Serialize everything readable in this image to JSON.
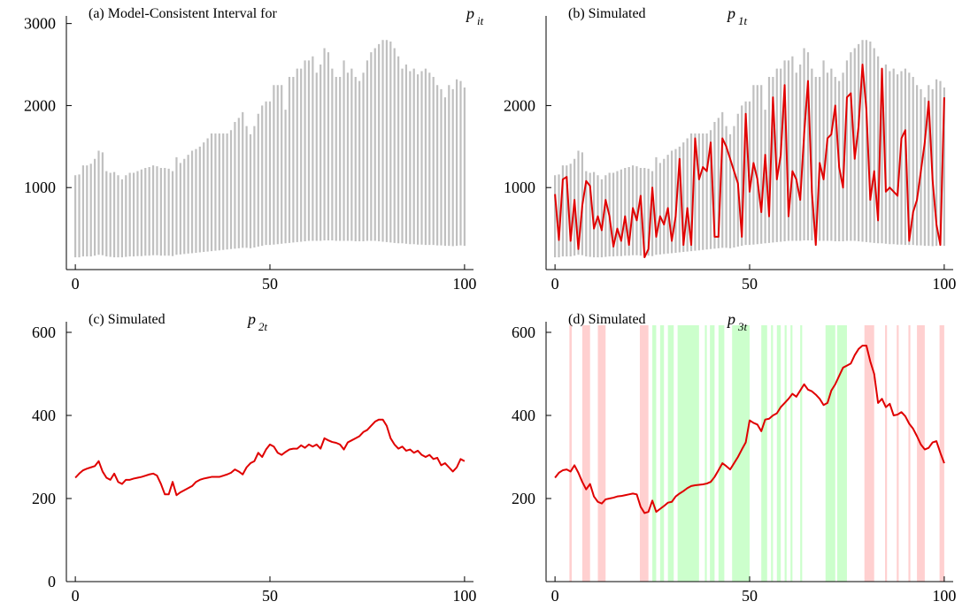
{
  "chart_data": [
    {
      "type": "range",
      "title": "(a) Model-Consistent Interval for",
      "title_symbol": "p",
      "title_subscript": "it",
      "x": [
        0,
        1,
        2,
        3,
        4,
        5,
        6,
        7,
        8,
        9,
        10,
        11,
        12,
        13,
        14,
        15,
        16,
        17,
        18,
        19,
        20,
        21,
        22,
        23,
        24,
        25,
        26,
        27,
        28,
        29,
        30,
        31,
        32,
        33,
        34,
        35,
        36,
        37,
        38,
        39,
        40,
        41,
        42,
        43,
        44,
        45,
        46,
        47,
        48,
        49,
        50,
        51,
        52,
        53,
        54,
        55,
        56,
        57,
        58,
        59,
        60,
        61,
        62,
        63,
        64,
        65,
        66,
        67,
        68,
        69,
        70,
        71,
        72,
        73,
        74,
        75,
        76,
        77,
        78,
        79,
        80,
        81,
        82,
        83,
        84,
        85,
        86,
        87,
        88,
        89,
        90,
        91,
        92,
        93,
        94,
        95,
        96,
        97,
        98,
        99,
        100
      ],
      "lower": [
        150,
        150,
        160,
        160,
        160,
        170,
        180,
        175,
        160,
        155,
        150,
        150,
        150,
        155,
        160,
        160,
        165,
        165,
        170,
        170,
        175,
        175,
        170,
        170,
        170,
        165,
        180,
        185,
        190,
        195,
        200,
        205,
        210,
        215,
        220,
        225,
        230,
        235,
        240,
        245,
        250,
        255,
        260,
        265,
        265,
        260,
        270,
        280,
        290,
        300,
        300,
        305,
        310,
        315,
        320,
        325,
        330,
        335,
        340,
        345,
        350,
        350,
        350,
        350,
        355,
        355,
        355,
        350,
        350,
        350,
        350,
        350,
        345,
        345,
        345,
        350,
        350,
        350,
        345,
        340,
        335,
        330,
        325,
        320,
        320,
        315,
        310,
        310,
        305,
        305,
        300,
        300,
        300,
        295,
        295,
        290,
        290,
        285,
        290,
        295,
        290
      ],
      "upper": [
        1150,
        1160,
        1270,
        1270,
        1290,
        1350,
        1450,
        1430,
        1200,
        1180,
        1190,
        1150,
        1100,
        1150,
        1180,
        1180,
        1200,
        1220,
        1240,
        1250,
        1270,
        1260,
        1240,
        1240,
        1230,
        1200,
        1370,
        1300,
        1350,
        1400,
        1450,
        1470,
        1500,
        1550,
        1600,
        1660,
        1660,
        1660,
        1660,
        1660,
        1700,
        1800,
        1850,
        1920,
        1750,
        1650,
        1750,
        1900,
        2000,
        2050,
        2050,
        2250,
        2250,
        2250,
        1950,
        2350,
        2350,
        2450,
        2450,
        2550,
        2550,
        2600,
        2400,
        2500,
        2700,
        2650,
        2450,
        2350,
        2350,
        2550,
        2400,
        2450,
        2350,
        2300,
        2400,
        2550,
        2650,
        2700,
        2750,
        2800,
        2800,
        2780,
        2700,
        2600,
        2450,
        2500,
        2420,
        2450,
        2380,
        2420,
        2450,
        2400,
        2350,
        2250,
        2200,
        2100,
        2250,
        2200,
        2320,
        2300,
        2220
      ],
      "range_color": "#c0c0c0",
      "xlim": [
        -2.3,
        102.3
      ],
      "ylim": [
        0,
        3050
      ],
      "xticks": [
        0,
        50,
        100
      ],
      "yticks": [
        1000,
        2000,
        3000
      ]
    },
    {
      "type": "line",
      "title": "(b) Simulated",
      "title_symbol": "p",
      "title_subscript": "1t",
      "x": [
        0,
        1,
        2,
        3,
        4,
        5,
        6,
        7,
        8,
        9,
        10,
        11,
        12,
        13,
        14,
        15,
        16,
        17,
        18,
        19,
        20,
        21,
        22,
        23,
        24,
        25,
        26,
        27,
        28,
        29,
        30,
        31,
        32,
        33,
        34,
        35,
        36,
        37,
        38,
        39,
        40,
        41,
        42,
        43,
        44,
        45,
        46,
        47,
        48,
        49,
        50,
        51,
        52,
        53,
        54,
        55,
        56,
        57,
        58,
        59,
        60,
        61,
        62,
        63,
        64,
        65,
        66,
        67,
        68,
        69,
        70,
        71,
        72,
        73,
        74,
        75,
        76,
        77,
        78,
        79,
        80,
        81,
        82,
        83,
        84,
        85,
        86,
        87,
        88,
        89,
        90,
        91,
        92,
        93,
        94,
        95,
        96,
        97,
        98,
        99,
        100
      ],
      "lower": [
        150,
        150,
        160,
        160,
        160,
        170,
        180,
        175,
        160,
        155,
        150,
        150,
        150,
        155,
        160,
        160,
        165,
        165,
        170,
        170,
        175,
        175,
        170,
        170,
        170,
        165,
        180,
        185,
        190,
        195,
        200,
        205,
        210,
        215,
        220,
        225,
        230,
        235,
        240,
        245,
        250,
        255,
        260,
        265,
        265,
        260,
        270,
        280,
        290,
        300,
        300,
        305,
        310,
        315,
        320,
        325,
        330,
        335,
        340,
        345,
        350,
        350,
        350,
        350,
        355,
        355,
        355,
        350,
        350,
        350,
        350,
        350,
        345,
        345,
        345,
        350,
        350,
        350,
        345,
        340,
        335,
        330,
        325,
        320,
        320,
        315,
        310,
        310,
        305,
        305,
        300,
        300,
        300,
        295,
        295,
        290,
        290,
        285,
        290,
        295,
        290
      ],
      "upper": [
        1150,
        1160,
        1270,
        1270,
        1290,
        1350,
        1450,
        1430,
        1200,
        1180,
        1190,
        1150,
        1100,
        1150,
        1180,
        1180,
        1200,
        1220,
        1240,
        1250,
        1270,
        1260,
        1240,
        1240,
        1230,
        1200,
        1370,
        1300,
        1350,
        1400,
        1450,
        1470,
        1500,
        1550,
        1600,
        1660,
        1660,
        1660,
        1660,
        1660,
        1700,
        1800,
        1850,
        1920,
        1750,
        1650,
        1750,
        1900,
        2000,
        2050,
        2050,
        2250,
        2250,
        2250,
        1950,
        2350,
        2350,
        2450,
        2450,
        2550,
        2550,
        2600,
        2400,
        2500,
        2700,
        2650,
        2450,
        2350,
        2350,
        2550,
        2400,
        2450,
        2350,
        2300,
        2400,
        2550,
        2650,
        2700,
        2750,
        2800,
        2800,
        2780,
        2700,
        2600,
        2450,
        2500,
        2420,
        2450,
        2380,
        2420,
        2450,
        2400,
        2350,
        2250,
        2200,
        2100,
        2250,
        2200,
        2320,
        2300,
        2220
      ],
      "range_color": "#c0c0c0",
      "series": [
        {
          "color": "#e00000",
          "values": [
            920,
            360,
            1100,
            1130,
            350,
            850,
            250,
            780,
            1080,
            1020,
            500,
            650,
            480,
            850,
            650,
            280,
            500,
            350,
            650,
            300,
            750,
            600,
            900,
            150,
            250,
            1000,
            400,
            650,
            550,
            750,
            350,
            650,
            1350,
            300,
            750,
            300,
            1600,
            1100,
            1250,
            1200,
            1550,
            400,
            400,
            1600,
            1500,
            1350,
            1200,
            1050,
            400,
            1900,
            950,
            1300,
            1100,
            700,
            1400,
            650,
            2100,
            1100,
            1400,
            2250,
            650,
            1200,
            1100,
            850,
            1650,
            2300,
            950,
            300,
            1300,
            1100,
            1600,
            1650,
            2000,
            1250,
            1000,
            2100,
            2150,
            1350,
            1750,
            2500,
            1950,
            850,
            1200,
            600,
            2450,
            950,
            1000,
            950,
            900,
            1600,
            1700,
            350,
            700,
            850,
            1200,
            1550,
            2050,
            1100,
            550,
            300,
            2100
          ]
        }
      ],
      "xlim": [
        -2.3,
        102.3
      ],
      "ylim": [
        0,
        3050
      ],
      "xticks": [
        0,
        50,
        100
      ],
      "yticks": [
        1000,
        2000
      ]
    },
    {
      "type": "line",
      "title": "(c) Simulated",
      "title_symbol": "p",
      "title_subscript": "2t",
      "x": [
        0,
        1,
        2,
        3,
        4,
        5,
        6,
        7,
        8,
        9,
        10,
        11,
        12,
        13,
        14,
        15,
        16,
        17,
        18,
        19,
        20,
        21,
        22,
        23,
        24,
        25,
        26,
        27,
        28,
        29,
        30,
        31,
        32,
        33,
        34,
        35,
        36,
        37,
        38,
        39,
        40,
        41,
        42,
        43,
        44,
        45,
        46,
        47,
        48,
        49,
        50,
        51,
        52,
        53,
        54,
        55,
        56,
        57,
        58,
        59,
        60,
        61,
        62,
        63,
        64,
        65,
        66,
        67,
        68,
        69,
        70,
        71,
        72,
        73,
        74,
        75,
        76,
        77,
        78,
        79,
        80,
        81,
        82,
        83,
        84,
        85,
        86,
        87,
        88,
        89,
        90,
        91,
        92,
        93,
        94,
        95,
        96,
        97,
        98,
        99,
        100
      ],
      "series": [
        {
          "color": "#e00000",
          "values": [
            250,
            260,
            268,
            272,
            275,
            278,
            290,
            265,
            250,
            245,
            260,
            240,
            235,
            245,
            245,
            248,
            250,
            252,
            255,
            258,
            260,
            255,
            235,
            210,
            210,
            240,
            208,
            215,
            220,
            225,
            230,
            240,
            245,
            248,
            250,
            252,
            252,
            252,
            255,
            258,
            262,
            270,
            265,
            258,
            275,
            285,
            290,
            310,
            300,
            318,
            330,
            325,
            310,
            305,
            312,
            318,
            320,
            320,
            328,
            322,
            330,
            325,
            330,
            320,
            345,
            340,
            336,
            334,
            330,
            318,
            335,
            340,
            345,
            350,
            360,
            365,
            375,
            385,
            390,
            390,
            375,
            345,
            330,
            320,
            325,
            315,
            318,
            310,
            315,
            305,
            300,
            305,
            295,
            298,
            280,
            285,
            275,
            265,
            275,
            295,
            290
          ]
        }
      ],
      "xlim": [
        -2.3,
        102.3
      ],
      "ylim": [
        0,
        617
      ],
      "xticks": [
        0,
        50,
        100
      ],
      "yticks": [
        0,
        200,
        400,
        600
      ]
    },
    {
      "type": "line",
      "title": "(d) Simulated",
      "title_symbol": "p",
      "title_subscript": "3t",
      "x": [
        0,
        1,
        2,
        3,
        4,
        5,
        6,
        7,
        8,
        9,
        10,
        11,
        12,
        13,
        14,
        15,
        16,
        17,
        18,
        19,
        20,
        21,
        22,
        23,
        24,
        25,
        26,
        27,
        28,
        29,
        30,
        31,
        32,
        33,
        34,
        35,
        36,
        37,
        38,
        39,
        40,
        41,
        42,
        43,
        44,
        45,
        46,
        47,
        48,
        49,
        50,
        51,
        52,
        53,
        54,
        55,
        56,
        57,
        58,
        59,
        60,
        61,
        62,
        63,
        64,
        65,
        66,
        67,
        68,
        69,
        70,
        71,
        72,
        73,
        74,
        75,
        76,
        77,
        78,
        79,
        80,
        81,
        82,
        83,
        84,
        85,
        86,
        87,
        88,
        89,
        90,
        91,
        92,
        93,
        94,
        95,
        96,
        97,
        98,
        99,
        100
      ],
      "bands": [
        {
          "color": "#ffd0d0",
          "spans": [
            [
              3.7,
              4.3
            ],
            [
              7,
              9
            ],
            [
              11,
              13
            ],
            [
              21.8,
              24
            ],
            [
              79.5,
              82
            ],
            [
              84.8,
              85.3
            ],
            [
              87.8,
              88.3
            ],
            [
              90.8,
              91.3
            ],
            [
              93,
              95
            ],
            [
              98.8,
              100
            ]
          ]
        },
        {
          "color": "#ccffcc",
          "spans": [
            [
              25,
              26
            ],
            [
              27,
              28
            ],
            [
              29,
              30.5
            ],
            [
              31.5,
              37
            ],
            [
              38.5,
              39
            ],
            [
              39.8,
              41
            ],
            [
              42,
              43.5
            ],
            [
              45.5,
              50
            ],
            [
              53,
              54.5
            ],
            [
              55.5,
              56
            ],
            [
              57,
              58
            ],
            [
              59,
              59.5
            ],
            [
              60.5,
              61
            ],
            [
              63,
              63.5
            ],
            [
              69.5,
              72
            ],
            [
              72.5,
              75
            ]
          ]
        }
      ],
      "series": [
        {
          "color": "#e00000",
          "values": [
            250,
            262,
            268,
            270,
            265,
            280,
            262,
            240,
            222,
            235,
            205,
            192,
            188,
            198,
            200,
            202,
            205,
            206,
            208,
            210,
            212,
            210,
            180,
            165,
            168,
            195,
            168,
            175,
            182,
            190,
            192,
            205,
            212,
            218,
            225,
            230,
            232,
            233,
            234,
            236,
            240,
            252,
            268,
            285,
            278,
            270,
            285,
            300,
            318,
            335,
            388,
            382,
            378,
            362,
            390,
            392,
            400,
            405,
            420,
            430,
            440,
            452,
            445,
            460,
            475,
            462,
            458,
            450,
            440,
            425,
            430,
            460,
            475,
            495,
            515,
            520,
            525,
            545,
            560,
            568,
            568,
            530,
            500,
            430,
            440,
            420,
            428,
            400,
            402,
            408,
            398,
            380,
            368,
            350,
            330,
            318,
            322,
            335,
            338,
            310,
            285
          ]
        }
      ],
      "xlim": [
        -2.3,
        102.3
      ],
      "ylim": [
        0,
        617
      ],
      "xticks": [
        0,
        50,
        100
      ],
      "yticks": [
        200,
        400,
        600
      ]
    }
  ]
}
